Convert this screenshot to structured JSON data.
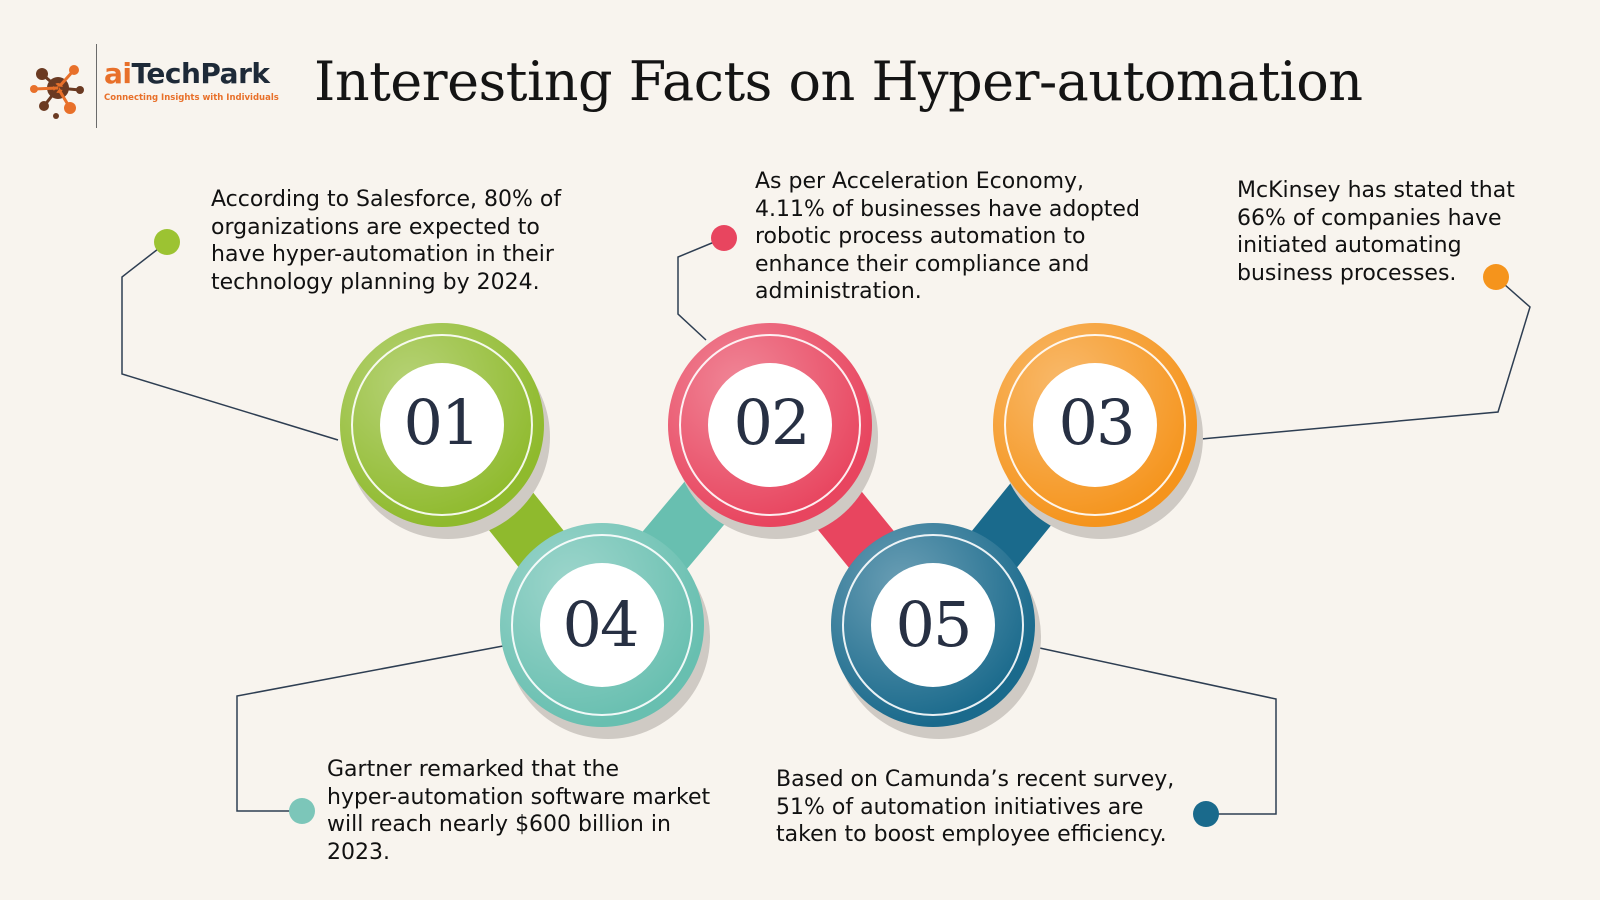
{
  "header": {
    "logo_name_prefix": "ai",
    "logo_name_suffix": "TechPark",
    "logo_tagline": "Connecting Insights with Individuals",
    "title": "Interesting Facts on Hyper-automation"
  },
  "colors": {
    "background": "#f8f4ee",
    "green": "#8fba2d",
    "red": "#e8455f",
    "orange": "#f5941c",
    "teal": "#68bfb0",
    "blue": "#1a6a8c",
    "connector_line": "#2e3e52",
    "brand_orange": "#e8702a",
    "number_text": "#273043"
  },
  "nodes": [
    {
      "number": "01",
      "color": "green",
      "icon": "green-circle-badge",
      "text_lines": [
        "According to Salesforce, 80% of",
        "organizations are expected to",
        "have hyper-automation in their",
        "technology planning by 2024."
      ]
    },
    {
      "number": "02",
      "color": "red",
      "icon": "red-circle-badge",
      "text_lines": [
        "As per Acceleration Economy,",
        "4.11% of businesses have adopted",
        "robotic process automation to",
        "enhance their compliance and",
        "administration."
      ]
    },
    {
      "number": "03",
      "color": "orange",
      "icon": "orange-circle-badge",
      "text_lines": [
        "McKinsey has stated that",
        "66% of companies have",
        "initiated automating",
        "business processes."
      ]
    },
    {
      "number": "04",
      "color": "teal",
      "icon": "teal-circle-badge",
      "text_lines": [
        "Gartner remarked that the",
        "hyper-automation software market",
        "will reach nearly $600 billion in",
        "2023."
      ]
    },
    {
      "number": "05",
      "color": "blue",
      "icon": "blue-circle-badge",
      "text_lines": [
        "Based on Camunda’s recent survey,",
        "51% of automation initiatives are",
        "taken to boost employee efficiency."
      ]
    }
  ]
}
